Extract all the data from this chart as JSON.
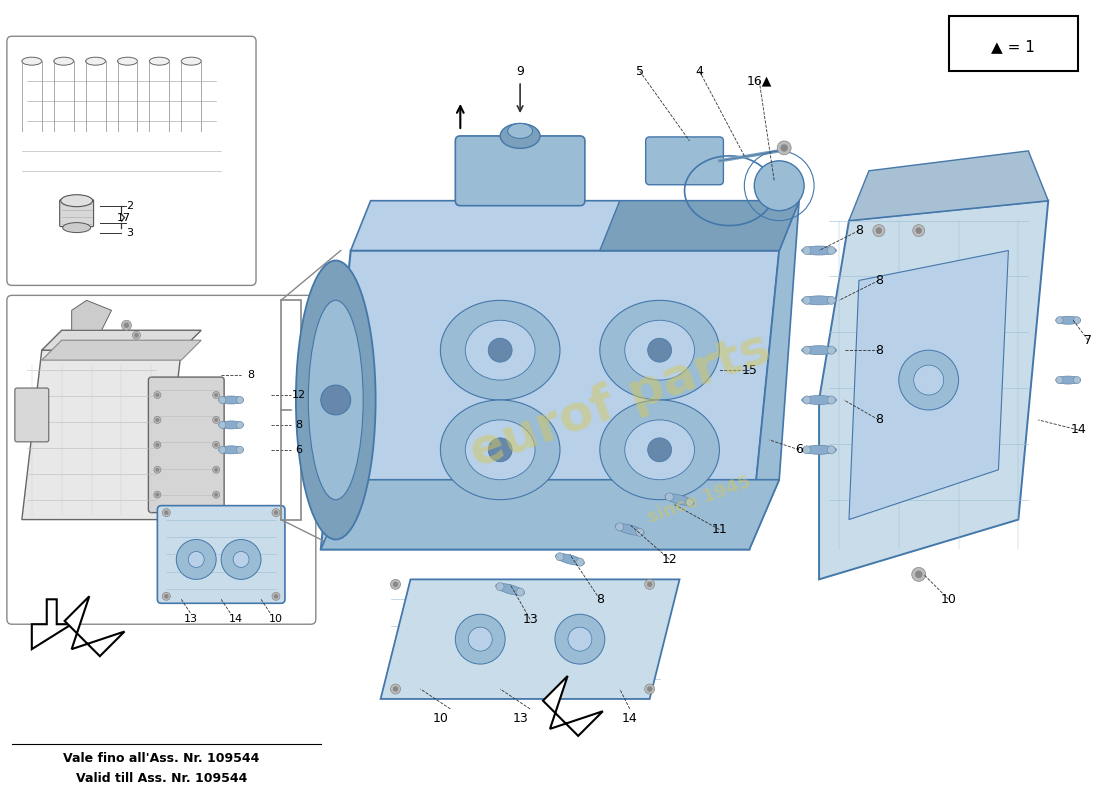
{
  "background_color": "#ffffff",
  "watermark_text": "eurof parts",
  "watermark_subtext": "since 1945",
  "watermark_color": "#d4c860",
  "note_line1": "Vale fino all'Ass. Nr. 109544",
  "note_line2": "Valid till Ass. Nr. 109544",
  "legend_text": "▲ = 1",
  "pump_blue_light": "#b8d0e8",
  "pump_blue_mid": "#9abcd4",
  "pump_blue_dark": "#7aa0bc",
  "pump_blue_outline": "#4477aa",
  "cover_blue": "#c8dcea",
  "cover_blue_dark": "#a8c0d4",
  "bolt_blue": "#8aaccc",
  "bolt_dark": "#6688aa",
  "line_color": "#333333",
  "gray_light": "#dddddd",
  "gray_mid": "#bbbbbb",
  "gray_dark": "#888888"
}
